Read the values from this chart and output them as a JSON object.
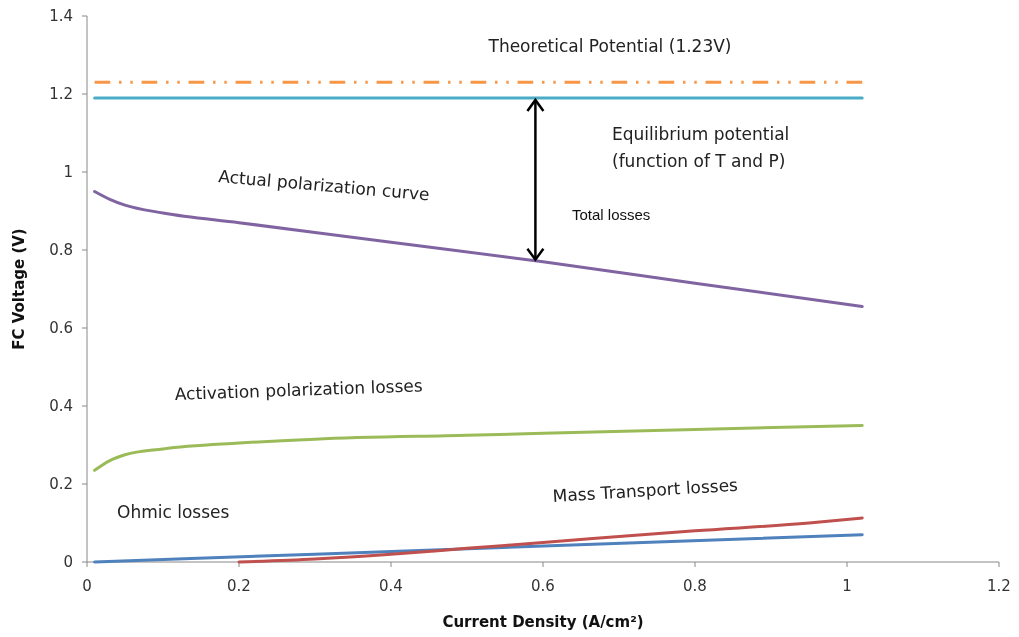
{
  "chart_data": {
    "type": "line",
    "xlabel": "Current Density (A/cm²)",
    "ylabel": "FC Voltage (V)",
    "xlim": [
      0,
      1.2
    ],
    "ylim": [
      0,
      1.4
    ],
    "xticks": [
      0,
      0.2,
      0.4,
      0.6,
      0.8,
      1,
      1.2
    ],
    "yticks": [
      0,
      0.2,
      0.4,
      0.6,
      0.8,
      1,
      1.2,
      1.4
    ],
    "grid": false,
    "legend": false,
    "marker": "none",
    "series": [
      {
        "name": "Theoretical Potential (1.23V)",
        "color": "#f79646",
        "line_style": "dashed",
        "x": [
          0.01,
          1.02
        ],
        "values": [
          1.23,
          1.23
        ]
      },
      {
        "name": "Equilibrium potential\n(function of T and P)",
        "color": "#4bacc6",
        "line_style": "solid",
        "x": [
          0.01,
          1.02
        ],
        "values": [
          1.19,
          1.19
        ]
      },
      {
        "name": "Actual polarization curve",
        "color": "#8064a2",
        "line_style": "solid",
        "x": [
          0.01,
          0.03,
          0.05,
          0.1,
          0.2,
          0.4,
          0.6,
          0.8,
          1.02
        ],
        "values": [
          0.95,
          0.93,
          0.915,
          0.895,
          0.87,
          0.82,
          0.77,
          0.715,
          0.655
        ]
      },
      {
        "name": "Activation polarization losses",
        "color": "#9bbb59",
        "line_style": "solid",
        "x": [
          0.01,
          0.03,
          0.05,
          0.1,
          0.2,
          0.3,
          0.5,
          0.8,
          1.02
        ],
        "values": [
          0.235,
          0.26,
          0.275,
          0.29,
          0.305,
          0.315,
          0.325,
          0.34,
          0.35
        ]
      },
      {
        "name": "Ohmic losses",
        "color": "#4f81bd",
        "line_style": "solid",
        "x": [
          0.01,
          0.3,
          1.02
        ],
        "values": [
          0.0,
          0.02,
          0.07
        ]
      },
      {
        "name": "Mass Transport losses",
        "color": "#c0504d",
        "line_style": "solid",
        "x": [
          0.2,
          0.3,
          0.4,
          0.5,
          0.6,
          0.8,
          0.95,
          1.02
        ],
        "values": [
          0.0,
          0.008,
          0.02,
          0.035,
          0.05,
          0.08,
          0.1,
          0.113
        ]
      }
    ],
    "annotations": [
      "Total losses"
    ]
  }
}
